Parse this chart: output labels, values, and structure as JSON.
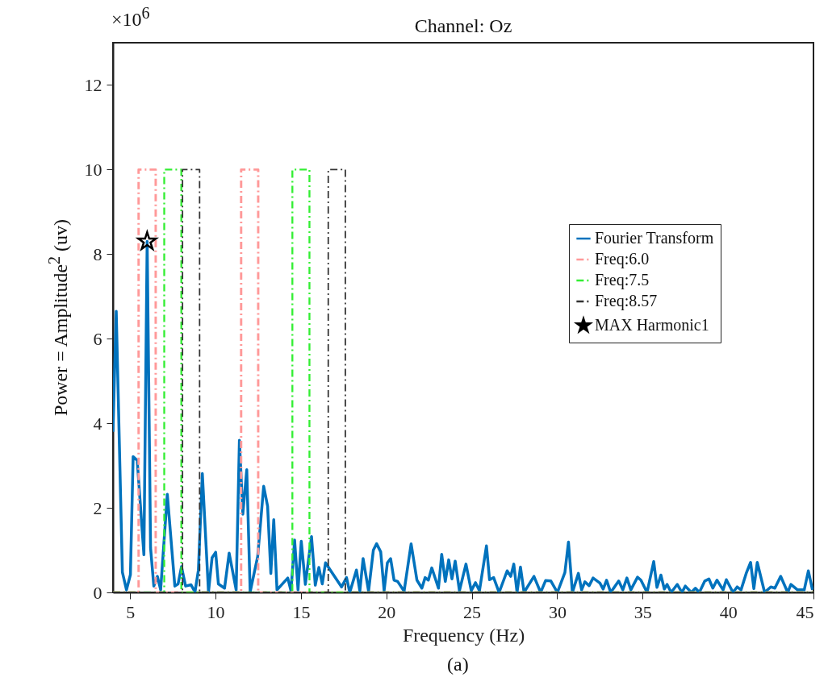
{
  "chart_data": {
    "type": "line",
    "title": "Channel: Oz",
    "xlabel": "Frequency (Hz)",
    "ylabel": "Power = Amplitude$^{2}$ (uv)",
    "annotations": [
      "×10$^{6}$",
      "(a)"
    ],
    "xlim": [
      4,
      45
    ],
    "xticks": [
      5,
      10,
      15,
      20,
      25,
      30,
      35,
      40,
      45
    ],
    "ylim": [
      0,
      13
    ],
    "yticks": [
      0,
      2,
      4,
      6,
      8,
      10,
      12
    ],
    "grid": false,
    "legend": "right",
    "series": [
      {
        "name": "Fourier Transform",
        "line_style": "solid",
        "color": "#0072bd",
        "x": [
          4.0,
          4.19,
          4.55,
          4.79,
          5.02,
          5.18,
          5.42,
          5.81,
          6.0,
          6.2,
          6.39,
          6.6,
          6.79,
          7.18,
          7.62,
          7.81,
          8.01,
          8.25,
          8.57,
          8.8,
          9.0,
          9.23,
          9.59,
          9.8,
          10.01,
          10.17,
          10.53,
          10.8,
          11.21,
          11.4,
          11.6,
          11.83,
          12.03,
          12.47,
          12.82,
          13.05,
          13.24,
          13.41,
          13.6,
          14.23,
          14.42,
          14.63,
          14.83,
          15.02,
          15.26,
          15.62,
          15.84,
          16.05,
          16.25,
          16.44,
          16.75,
          17.38,
          17.67,
          17.86,
          18.25,
          18.45,
          18.64,
          18.96,
          19.24,
          19.43,
          19.67,
          19.87,
          20.06,
          20.25,
          20.45,
          20.66,
          21.04,
          21.45,
          21.79,
          22.08,
          22.27,
          22.46,
          22.66,
          23.05,
          23.24,
          23.45,
          23.65,
          23.84,
          24.03,
          24.28,
          24.66,
          24.97,
          25.22,
          25.45,
          25.86,
          26.04,
          26.28,
          26.6,
          27.07,
          27.28,
          27.46,
          27.65,
          27.85,
          28.06,
          28.64,
          29.03,
          29.32,
          29.63,
          30.01,
          30.45,
          30.66,
          30.89,
          31.24,
          31.43,
          31.62,
          31.87,
          32.1,
          32.5,
          32.69,
          32.89,
          33.13,
          33.6,
          33.84,
          34.08,
          34.31,
          34.7,
          34.9,
          35.26,
          35.65,
          35.84,
          36.07,
          36.27,
          36.43,
          36.67,
          37.03,
          37.3,
          37.5,
          37.85,
          38.09,
          38.32,
          38.64,
          38.88,
          39.11,
          39.35,
          39.71,
          39.9,
          40.29,
          40.53,
          40.76,
          41.08,
          41.32,
          41.51,
          41.71,
          42.14,
          42.5,
          42.74,
          43.08,
          43.49,
          43.68,
          44.07,
          44.46,
          44.7,
          44.94
        ],
        "values": [
          3.8,
          6.65,
          0.48,
          0.06,
          0.42,
          3.21,
          3.12,
          0.89,
          8.3,
          1.05,
          0.15,
          0.38,
          0.06,
          2.32,
          0.15,
          0.2,
          0.61,
          0.15,
          0.18,
          0.01,
          0.53,
          2.81,
          0.01,
          0.82,
          0.95,
          0.2,
          0.1,
          0.93,
          0.06,
          3.6,
          1.85,
          2.9,
          0.01,
          0.85,
          2.51,
          2.04,
          0.45,
          1.72,
          0.06,
          0.34,
          0.03,
          1.24,
          0.06,
          1.21,
          0.19,
          1.32,
          0.17,
          0.59,
          0.2,
          0.7,
          0.51,
          0.13,
          0.35,
          0,
          0.53,
          0.03,
          0.8,
          0.03,
          1.0,
          1.15,
          0.96,
          0.04,
          0.7,
          0.8,
          0.29,
          0.26,
          0.03,
          1.15,
          0.29,
          0.1,
          0.35,
          0.29,
          0.58,
          0.1,
          0.9,
          0.26,
          0.77,
          0.32,
          0.74,
          0.04,
          0.67,
          0.04,
          0.23,
          0.04,
          1.1,
          0.3,
          0.35,
          0,
          0.51,
          0.38,
          0.67,
          0,
          0.6,
          0,
          0.38,
          0,
          0.28,
          0.27,
          0,
          0.47,
          1.19,
          0,
          0.45,
          0.06,
          0.25,
          0.16,
          0.34,
          0.22,
          0.08,
          0.29,
          0,
          0.27,
          0.06,
          0.34,
          0.06,
          0.36,
          0.29,
          0,
          0.73,
          0.12,
          0.41,
          0.08,
          0.19,
          0,
          0.19,
          0,
          0.15,
          0,
          0.1,
          0,
          0.27,
          0.32,
          0.1,
          0.29,
          0.06,
          0.3,
          0,
          0.13,
          0.06,
          0.47,
          0.71,
          0.09,
          0.71,
          0,
          0.13,
          0.1,
          0.38,
          0,
          0.19,
          0.06,
          0.06,
          0.51,
          0.06
        ]
      },
      {
        "name": "Freq:6.0",
        "line_style": "dashed",
        "color": "#ff9999",
        "x": [
          4,
          5.5,
          5.5,
          6.5,
          6.5,
          11.5,
          11.5,
          12.5,
          12.5,
          45
        ],
        "values": [
          0,
          0,
          10,
          10,
          0,
          0,
          10,
          10,
          0,
          0
        ]
      },
      {
        "name": "Freq:7.5",
        "line_style": "dashed",
        "color": "#33ee33",
        "x": [
          4,
          7,
          7,
          8,
          8,
          14.5,
          14.5,
          15.5,
          15.5,
          45
        ],
        "values": [
          0,
          0,
          10,
          10,
          0,
          0,
          10,
          10,
          0,
          0
        ]
      },
      {
        "name": "Freq:8.57",
        "line_style": "dashed",
        "color": "#333333",
        "x": [
          4,
          8.07,
          8.07,
          9.07,
          9.07,
          16.6,
          16.6,
          17.6,
          17.6,
          45
        ],
        "values": [
          0,
          0,
          10,
          10,
          0,
          0,
          10,
          10,
          0,
          0
        ]
      },
      {
        "name": "MAX Harmonic1",
        "type": "scatter",
        "marker": "star",
        "color": "#000000",
        "x": [
          6.0
        ],
        "values": [
          8.3
        ]
      }
    ]
  }
}
